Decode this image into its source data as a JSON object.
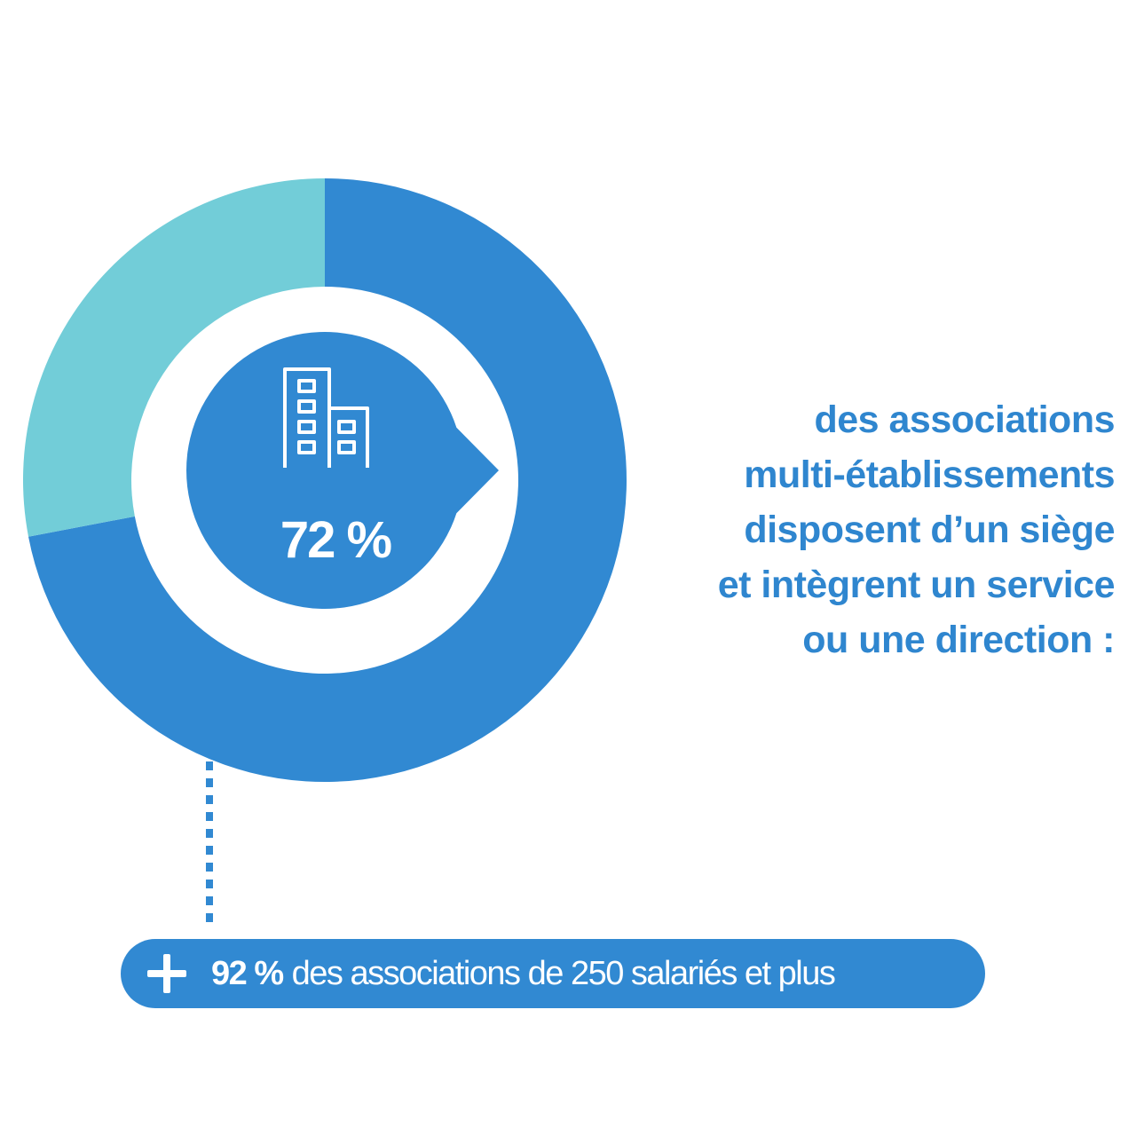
{
  "chart_data": {
    "type": "pie",
    "variant": "donut",
    "slices": [
      {
        "value": 72,
        "color": "#3189d2"
      },
      {
        "value": 28,
        "color": "#72cdd8"
      }
    ],
    "center_label": "72 %",
    "center_icon": "building-icon",
    "caption_lines": [
      "des associations",
      "multi-établissements",
      "disposent d’un siège",
      "et intègrent un service",
      "ou une direction :"
    ]
  },
  "note": {
    "icon": "plus-icon",
    "value": "92 %",
    "text": "des associations de 250 salariés et plus"
  },
  "colors": {
    "primary": "#3189d2",
    "secondary": "#72cdd8",
    "text": "#2f86cf",
    "background": "#ffffff"
  }
}
